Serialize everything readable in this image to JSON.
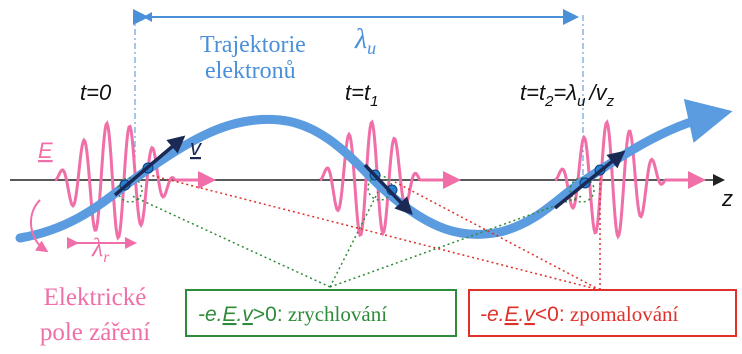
{
  "wavelength_undulator": [
    "λ",
    "u"
  ],
  "trajectory_label": [
    "Trajektorie",
    "elektronů"
  ],
  "time_labels": [
    [
      "t=0"
    ],
    [
      "t=t",
      "1"
    ],
    [
      "t=t",
      "2",
      "=λ",
      "u",
      "/v",
      "z"
    ]
  ],
  "field_symbol": "E",
  "velocity_symbol": "v",
  "axis_label": "z",
  "wavelength_radiation": [
    "λ",
    "r"
  ],
  "field_caption": [
    "Elektrické",
    "pole záření"
  ],
  "acceleration_box": {
    "prefix": "-e.",
    "field": "E",
    "dot": ".",
    "velocity": "v",
    "condition": ">0:",
    "text": " zrychlování"
  },
  "deceleration_box": {
    "prefix": "-e.",
    "field": "E",
    "dot": ".",
    "velocity": "v",
    "condition": "<0:",
    "text": " zpomalování"
  }
}
